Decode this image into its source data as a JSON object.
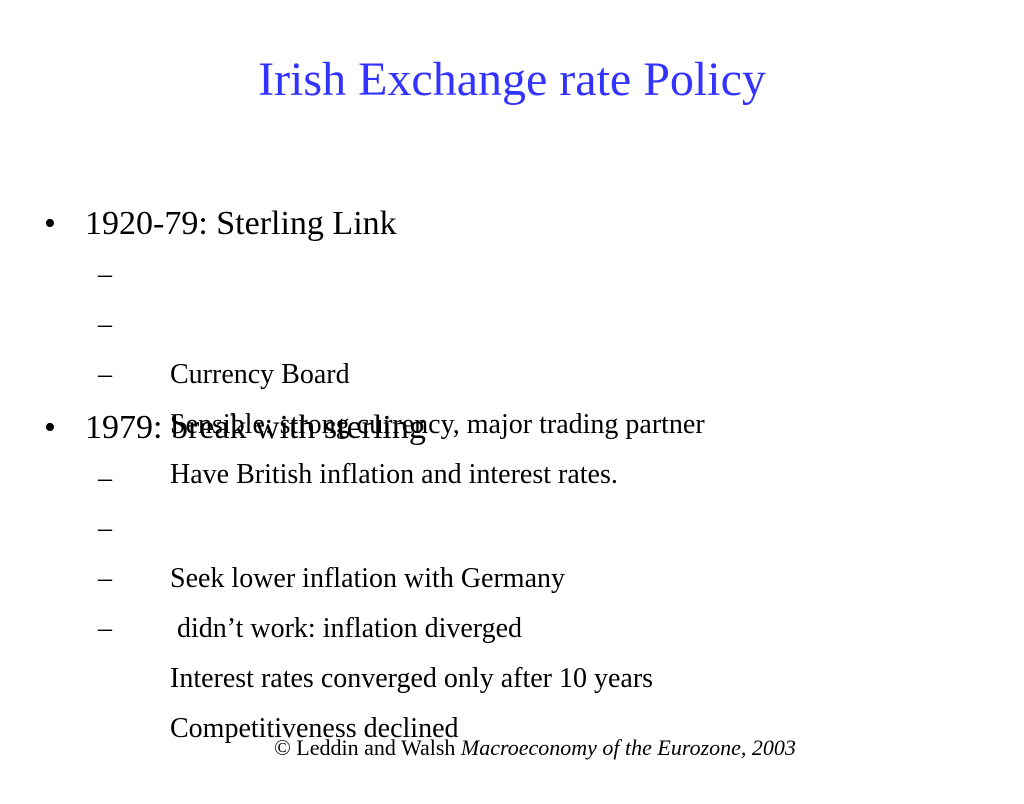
{
  "slide": {
    "title": "Irish Exchange rate Policy",
    "title_color": "#3333ff",
    "bullet_marker": "•",
    "sub_marker": "–",
    "sections": [
      {
        "heading": "1920-79: Sterling Link",
        "items": [
          "Currency Board",
          "Sensible: strong currency, major trading partner",
          "Have British inflation and interest rates."
        ]
      },
      {
        "heading": "1979: break with sterling",
        "items": [
          "Seek lower inflation with Germany",
          " didn’t work: inflation diverged",
          "Interest rates converged only after 10 years",
          "Competitiveness declined"
        ]
      }
    ],
    "footer": {
      "prefix": "© Leddin and Walsh ",
      "italic": "Macroeconomy of the Eurozone, 2003"
    }
  }
}
